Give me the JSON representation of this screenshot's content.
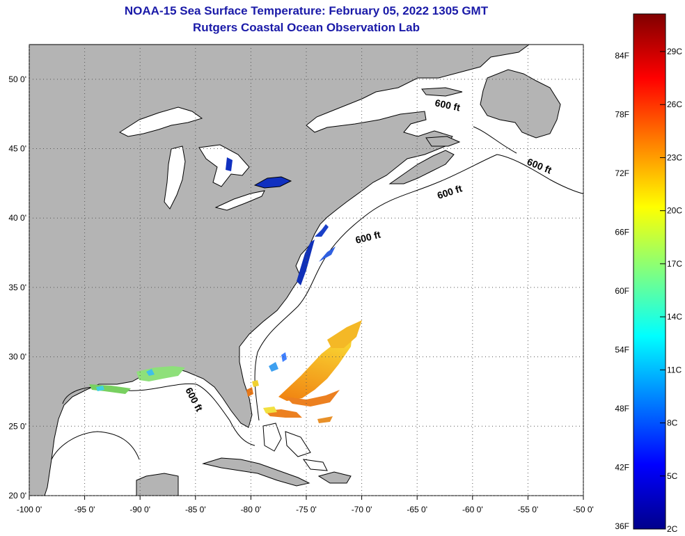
{
  "header": {
    "title": "NOAA-15 Sea Surface Temperature:  February 05, 2022 1305 GMT",
    "subtitle": "Rutgers Coastal Ocean Observation Lab"
  },
  "map": {
    "region": "US East Coast, Gulf of Mexico and western North Atlantic",
    "lon_range": [
      -100,
      -50
    ],
    "lat_range": [
      20,
      52.5
    ],
    "lat_ticks": [
      "20 0'",
      "25 0'",
      "30 0'",
      "35 0'",
      "40 0'",
      "45 0'",
      "50 0'"
    ],
    "lon_ticks": [
      "-100 0'",
      "-95 0'",
      "-90 0'",
      "-85 0'",
      "-80 0'",
      "-75 0'",
      "-70 0'",
      "-65 0'",
      "-60 0'",
      "-55 0'",
      "-50 0'"
    ],
    "grid": "dotted",
    "land_color": "#b4b4b4",
    "ocean_color": "#ffffff",
    "isobath_labels": [
      "600 ft",
      "600 ft",
      "600 ft",
      "600 ft",
      "600 ft"
    ]
  },
  "colorbar": {
    "fahrenheit_labels": [
      "84F",
      "78F",
      "72F",
      "66F",
      "60F",
      "54F",
      "48F",
      "42F",
      "36F"
    ],
    "celsius_labels": [
      "29C",
      "26C",
      "23C",
      "20C",
      "17C",
      "14C",
      "11C",
      "8C",
      "5C",
      "2C"
    ],
    "colors": [
      "#00008b",
      "#0000ff",
      "#0080ff",
      "#00ffff",
      "#80ff80",
      "#ffff00",
      "#ff8000",
      "#ff0000",
      "#800000"
    ]
  }
}
